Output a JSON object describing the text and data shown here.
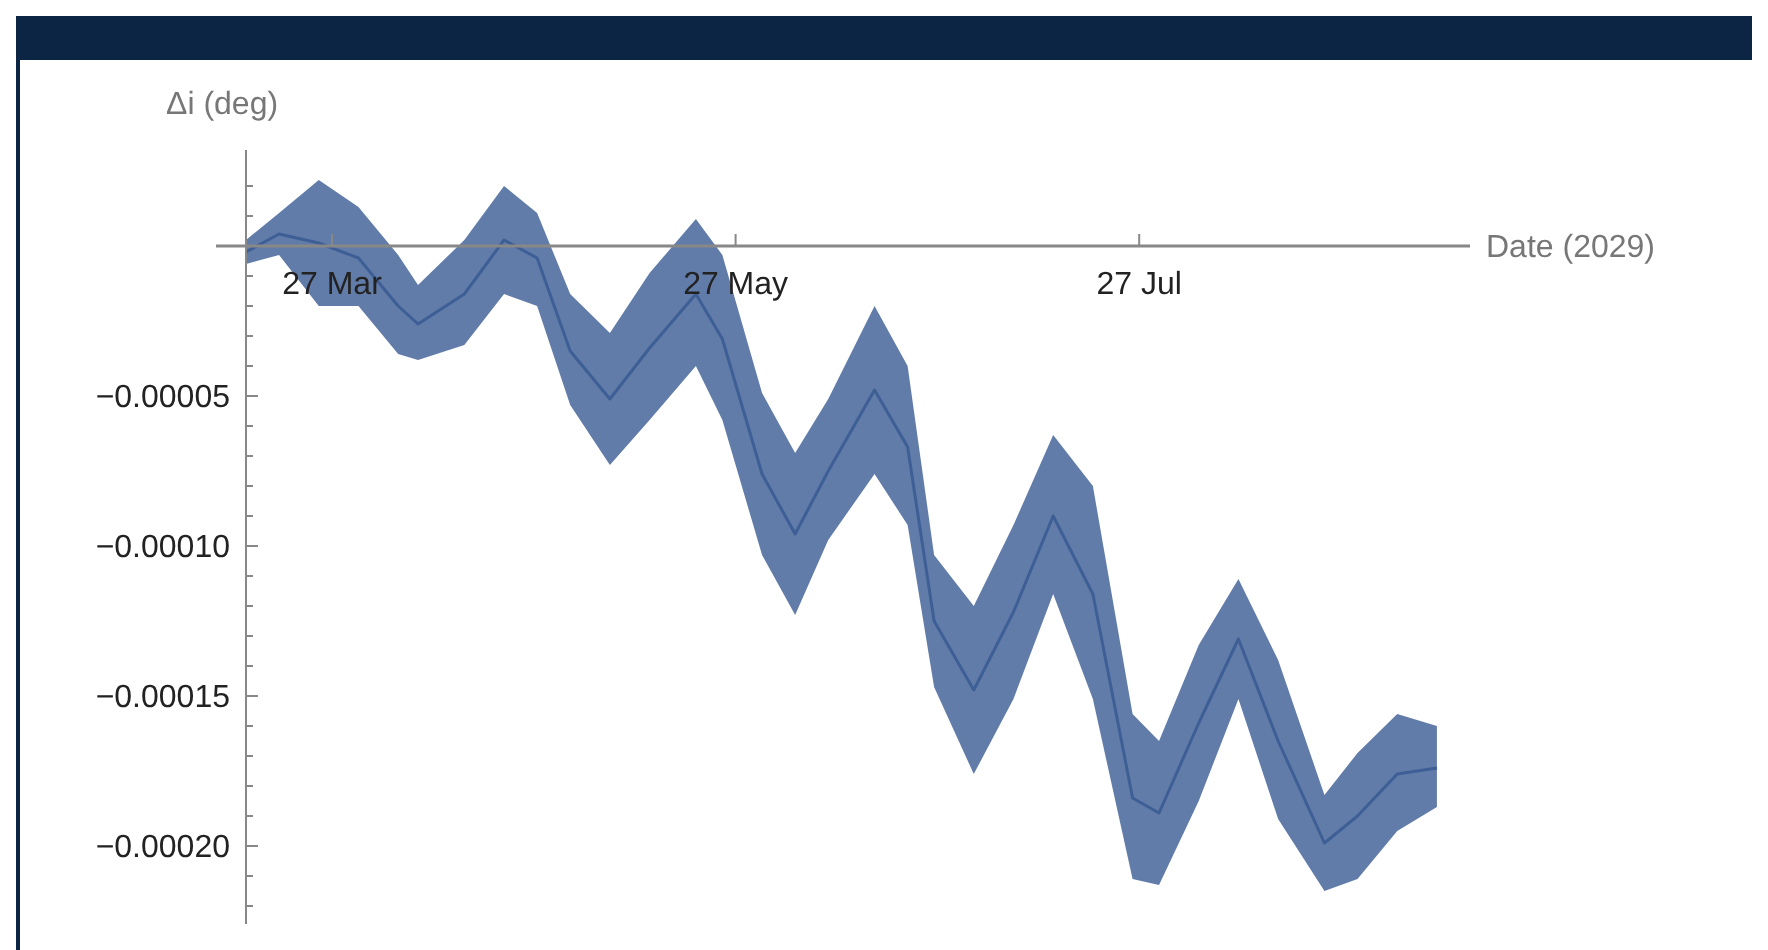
{
  "chart_data": {
    "type": "line",
    "xlabel": "Date (2029)",
    "ylabel": "Δi (deg)",
    "xlim": [
      "2029-03-14",
      "2029-09-15"
    ],
    "xticks": [
      {
        "value": "2029-03-27",
        "label": "27 Mar"
      },
      {
        "value": "2029-05-27",
        "label": "27 May"
      },
      {
        "value": "2029-07-27",
        "label": "27 Jul"
      }
    ],
    "ylim": [
      -0.000226,
      3.2e-05
    ],
    "yticks": [
      {
        "value": 2e-05,
        "label": null
      },
      {
        "value": 1e-05,
        "label": null
      },
      {
        "value": -1e-05,
        "label": null
      },
      {
        "value": -2e-05,
        "label": null
      },
      {
        "value": -3e-05,
        "label": null
      },
      {
        "value": -4e-05,
        "label": null
      },
      {
        "value": -5e-05,
        "label": "−0.00005"
      },
      {
        "value": -6e-05,
        "label": null
      },
      {
        "value": -7e-05,
        "label": null
      },
      {
        "value": -8e-05,
        "label": null
      },
      {
        "value": -9e-05,
        "label": null
      },
      {
        "value": -0.0001,
        "label": "−0.00010"
      },
      {
        "value": -0.00011,
        "label": null
      },
      {
        "value": -0.00012,
        "label": null
      },
      {
        "value": -0.00013,
        "label": null
      },
      {
        "value": -0.00014,
        "label": null
      },
      {
        "value": -0.00015,
        "label": "−0.00015"
      },
      {
        "value": -0.00016,
        "label": null
      },
      {
        "value": -0.00017,
        "label": null
      },
      {
        "value": -0.00018,
        "label": null
      },
      {
        "value": -0.00019,
        "label": null
      },
      {
        "value": -0.0002,
        "label": "−0.00020"
      },
      {
        "value": -0.00021,
        "label": null
      },
      {
        "value": -0.00022,
        "label": null
      }
    ],
    "grid": false,
    "x": [
      "2029-03-14",
      "2029-03-19",
      "2029-03-25",
      "2029-03-31",
      "2029-04-06",
      "2029-04-09",
      "2029-04-16",
      "2029-04-22",
      "2029-04-27",
      "2029-05-02",
      "2029-05-08",
      "2029-05-14",
      "2029-05-21",
      "2029-05-25",
      "2029-05-31",
      "2029-06-05",
      "2029-06-10",
      "2029-06-17",
      "2029-06-22",
      "2029-06-26",
      "2029-07-02",
      "2029-07-08",
      "2029-07-14",
      "2029-07-20",
      "2029-07-26",
      "2029-07-30",
      "2029-08-05",
      "2029-08-11",
      "2029-08-17",
      "2029-08-24",
      "2029-08-29",
      "2029-09-04",
      "2029-09-10"
    ],
    "series": [
      {
        "color": "#3e5f96",
        "values": [
          -2e-06,
          4e-06,
          1e-06,
          -4e-06,
          -2e-05,
          -2.6e-05,
          -1.6e-05,
          2e-06,
          -4e-06,
          -3.5e-05,
          -5.1e-05,
          -3.4e-05,
          -1.6e-05,
          -3.1e-05,
          -7.6e-05,
          -9.6e-05,
          -7.5e-05,
          -4.8e-05,
          -6.7e-05,
          -0.000125,
          -0.000148,
          -0.000122,
          -9e-05,
          -0.000116,
          -0.000184,
          -0.000189,
          -0.000159,
          -0.000131,
          -0.000165,
          -0.000199,
          -0.00019,
          -0.000176,
          -0.000174
        ],
        "upper": [
          2e-06,
          1.1e-05,
          2.2e-05,
          1.3e-05,
          -3e-06,
          -1.3e-05,
          2e-06,
          2e-05,
          1.1e-05,
          -1.6e-05,
          -2.9e-05,
          -9e-06,
          9e-06,
          -3e-06,
          -4.9e-05,
          -6.9e-05,
          -5.1e-05,
          -2e-05,
          -4e-05,
          -0.000103,
          -0.00012,
          -9.3e-05,
          -6.3e-05,
          -8e-05,
          -0.000156,
          -0.000165,
          -0.000133,
          -0.000111,
          -0.000138,
          -0.000183,
          -0.000169,
          -0.000156,
          -0.00016
        ],
        "lower": [
          -6e-06,
          -3e-06,
          -2e-05,
          -2e-05,
          -3.6e-05,
          -3.8e-05,
          -3.3e-05,
          -1.6e-05,
          -2e-05,
          -5.3e-05,
          -7.3e-05,
          -5.8e-05,
          -4e-05,
          -5.8e-05,
          -0.000103,
          -0.000123,
          -9.8e-05,
          -7.6e-05,
          -9.3e-05,
          -0.000147,
          -0.000176,
          -0.000151,
          -0.000116,
          -0.000151,
          -0.000211,
          -0.000213,
          -0.000185,
          -0.000151,
          -0.000191,
          -0.000215,
          -0.000211,
          -0.000195,
          -0.000187
        ]
      }
    ]
  }
}
